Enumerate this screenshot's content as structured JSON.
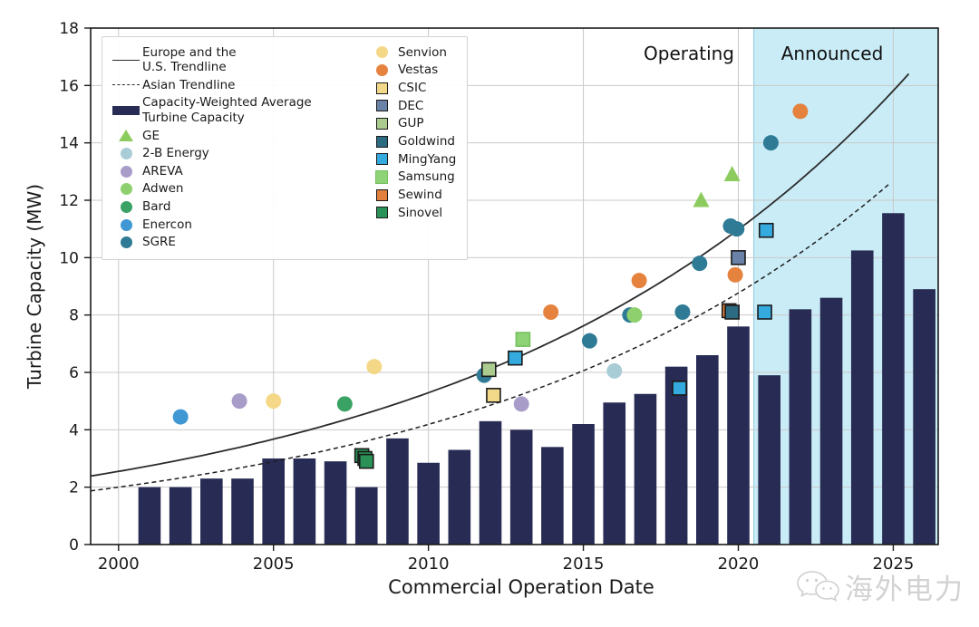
{
  "chart_data": {
    "type": "bar",
    "title": "",
    "xlabel": "Commercial Operation Date",
    "ylabel": "Turbine Capacity (MW)",
    "xlim": [
      1999.1,
      2026.45
    ],
    "ylim": [
      0,
      18
    ],
    "x_ticks": [
      2000,
      2005,
      2010,
      2015,
      2020,
      2025
    ],
    "y_ticks": [
      0,
      2,
      4,
      6,
      8,
      10,
      12,
      14,
      16,
      18
    ],
    "grid": true,
    "grid_color": "#c9c9c9",
    "frame_color": "#1a1a1a",
    "region_labels": {
      "operating": "Operating",
      "announced": "Announced"
    },
    "announced_region": {
      "start": 2020.5,
      "end": 2026.45,
      "color": "#c9ecf7",
      "edge_color": "#8fcbdd"
    },
    "bars": {
      "label": "Capacity-Weighted Average Turbine Capacity",
      "color": "#282c54",
      "bar_width_years": 0.72,
      "years": [
        2001,
        2002,
        2003,
        2004,
        2005,
        2006,
        2007,
        2008,
        2009,
        2010,
        2011,
        2012,
        2013,
        2014,
        2015,
        2016,
        2017,
        2018,
        2019,
        2020,
        2021,
        2022,
        2023,
        2024,
        2025,
        2026
      ],
      "values": [
        2.0,
        2.0,
        2.3,
        2.3,
        3.0,
        3.0,
        2.9,
        2.0,
        3.7,
        2.85,
        3.3,
        4.3,
        4.0,
        3.4,
        4.2,
        4.95,
        5.25,
        6.2,
        6.6,
        7.6,
        5.9,
        8.2,
        8.6,
        10.25,
        11.55,
        8.9
      ]
    },
    "trendlines": [
      {
        "name": "Europe and the U.S. Trendline",
        "style": "solid",
        "model": "exponential",
        "a": 2.55,
        "b": 0.073,
        "t0": 2000,
        "t_start": 1999.1,
        "t_end": 2025.6,
        "color": "#2b2b2b"
      },
      {
        "name": "Asian Trendline",
        "style": "dashed",
        "model": "exponential",
        "a": 2.0,
        "b": 0.0739,
        "t0": 2000,
        "t_start": 1999.1,
        "t_end": 2024.9,
        "color": "#1f1f1f"
      }
    ],
    "series": [
      {
        "name": "Enercon",
        "marker": "circle",
        "color": "#3f97d3",
        "points": [
          [
            2002.0,
            4.45
          ]
        ]
      },
      {
        "name": "AREVA",
        "marker": "circle",
        "color": "#a89cc8",
        "points": [
          [
            2003.9,
            5.0
          ],
          [
            2013.0,
            4.9
          ]
        ]
      },
      {
        "name": "Senvion",
        "marker": "circle",
        "color": "#f4d888",
        "points": [
          [
            2005.0,
            5.0
          ],
          [
            2008.25,
            6.2
          ]
        ]
      },
      {
        "name": "Bard",
        "marker": "circle",
        "color": "#3ba266",
        "points": [
          [
            2007.3,
            4.9
          ]
        ]
      },
      {
        "name": "SGRE",
        "marker": "circle",
        "color": "#2f7b96",
        "points": [
          [
            2011.8,
            5.9
          ],
          [
            2015.2,
            7.1
          ],
          [
            2016.5,
            8.0
          ],
          [
            2018.2,
            8.1
          ],
          [
            2018.75,
            9.8
          ],
          [
            2019.75,
            11.1
          ],
          [
            2019.95,
            11.0
          ],
          [
            2021.05,
            14.0
          ]
        ]
      },
      {
        "name": "2-B Energy",
        "marker": "circle",
        "color": "#a9cdd7",
        "points": [
          [
            2016.0,
            6.05
          ]
        ]
      },
      {
        "name": "Adwen",
        "marker": "circle",
        "color": "#8ed06e",
        "points": [
          [
            2016.65,
            8.0
          ]
        ]
      },
      {
        "name": "Vestas",
        "marker": "circle",
        "color": "#e5823e",
        "points": [
          [
            2013.95,
            8.1
          ],
          [
            2016.8,
            9.2
          ],
          [
            2019.9,
            9.4
          ],
          [
            2022.0,
            15.1
          ]
        ]
      },
      {
        "name": "Sinovel",
        "marker": "square",
        "color": "#2a9257",
        "edge": "#1a1a1a",
        "points": [
          [
            2007.85,
            3.1
          ],
          [
            2007.95,
            3.0
          ],
          [
            2008.0,
            2.9
          ]
        ]
      },
      {
        "name": "CSIC",
        "marker": "square",
        "color": "#f2d98a",
        "edge": "#1a1a1a",
        "points": [
          [
            2012.1,
            5.2
          ]
        ]
      },
      {
        "name": "DEC",
        "marker": "square",
        "color": "#6b82a8",
        "edge": "#1a1a1a",
        "points": [
          [
            2020.0,
            10.0
          ]
        ]
      },
      {
        "name": "GUP",
        "marker": "square",
        "color": "#abcc8e",
        "edge": "#1a1a1a",
        "points": [
          [
            2011.95,
            6.1
          ]
        ]
      },
      {
        "name": "Sewind",
        "marker": "square",
        "color": "#e2803d",
        "edge": "#1a1a1a",
        "points": [
          [
            2019.7,
            8.15
          ]
        ]
      },
      {
        "name": "Goldwind",
        "marker": "square",
        "color": "#2d6b82",
        "edge": "#1a1a1a",
        "points": [
          [
            2019.8,
            8.1
          ]
        ]
      },
      {
        "name": "MingYang",
        "marker": "square",
        "color": "#35aade",
        "edge": "#1a1a1a",
        "points": [
          [
            2012.8,
            6.5
          ],
          [
            2018.1,
            5.45
          ],
          [
            2020.85,
            8.1
          ],
          [
            2020.9,
            10.95
          ]
        ]
      },
      {
        "name": "Samsung",
        "marker": "square",
        "color": "#8ed477",
        "edge": "#74bf5c",
        "points": [
          [
            2013.05,
            7.15
          ]
        ]
      },
      {
        "name": "GE",
        "marker": "triangle",
        "color": "#8ccb5e",
        "points": [
          [
            2018.8,
            12.0
          ],
          [
            2019.8,
            12.9
          ]
        ]
      }
    ]
  },
  "legend": {
    "entries_left": [
      {
        "label": "Europe and the U.S. Trendline",
        "label_lines": [
          "Europe and the",
          "U.S. Trendline"
        ],
        "marker": "line-solid",
        "color": "#2b2b2b"
      },
      {
        "label": "Asian Trendline",
        "label_lines": [
          "Asian Trendline"
        ],
        "marker": "line-dashed",
        "color": "#1f1f1f"
      },
      {
        "label": "Capacity-Weighted Average Turbine Capacity",
        "label_lines": [
          "Capacity-Weighted Average",
          "Turbine Capacity"
        ],
        "marker": "bar",
        "color": "#282c54"
      },
      {
        "label": "GE",
        "label_lines": [
          "GE"
        ],
        "marker": "triangle",
        "color": "#8ccb5e"
      },
      {
        "label": "2-B Energy",
        "label_lines": [
          "2-B Energy"
        ],
        "marker": "circle",
        "color": "#a9cdd7"
      },
      {
        "label": "AREVA",
        "label_lines": [
          "AREVA"
        ],
        "marker": "circle",
        "color": "#a89cc8"
      },
      {
        "label": "Adwen",
        "label_lines": [
          "Adwen"
        ],
        "marker": "circle",
        "color": "#8ed06e"
      },
      {
        "label": "Bard",
        "label_lines": [
          "Bard"
        ],
        "marker": "circle",
        "color": "#3ba266"
      },
      {
        "label": "Enercon",
        "label_lines": [
          "Enercon"
        ],
        "marker": "circle",
        "color": "#3f97d3"
      },
      {
        "label": "SGRE",
        "label_lines": [
          "SGRE"
        ],
        "marker": "circle",
        "color": "#2f7b96"
      }
    ],
    "entries_right": [
      {
        "label": "Senvion",
        "label_lines": [
          "Senvion"
        ],
        "marker": "circle",
        "color": "#f4d888"
      },
      {
        "label": "Vestas",
        "label_lines": [
          "Vestas"
        ],
        "marker": "circle",
        "color": "#e5823e"
      },
      {
        "label": "CSIC",
        "label_lines": [
          "CSIC"
        ],
        "marker": "square",
        "color": "#f2d98a"
      },
      {
        "label": "DEC",
        "label_lines": [
          "DEC"
        ],
        "marker": "square",
        "color": "#6b82a8"
      },
      {
        "label": "GUP",
        "label_lines": [
          "GUP"
        ],
        "marker": "square",
        "color": "#abcc8e"
      },
      {
        "label": "Goldwind",
        "label_lines": [
          "Goldwind"
        ],
        "marker": "square",
        "color": "#2d6b82"
      },
      {
        "label": "MingYang",
        "label_lines": [
          "MingYang"
        ],
        "marker": "square",
        "color": "#35aade"
      },
      {
        "label": "Samsung",
        "label_lines": [
          "Samsung"
        ],
        "marker": "square-noedge",
        "color": "#8ed477"
      },
      {
        "label": "Sewind",
        "label_lines": [
          "Sewind"
        ],
        "marker": "square",
        "color": "#e2803d"
      },
      {
        "label": "Sinovel",
        "label_lines": [
          "Sinovel"
        ],
        "marker": "square",
        "color": "#2a9257"
      }
    ]
  },
  "watermark": {
    "text": "海外电力",
    "icon": "wechat-logo",
    "color": "#d2d2d2"
  }
}
